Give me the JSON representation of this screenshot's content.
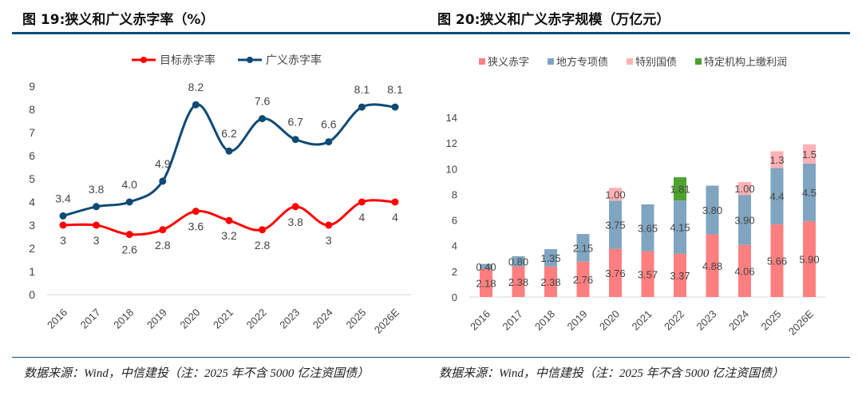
{
  "left": {
    "title": "图 19:狭义和广义赤字率（%）",
    "source": "数据来源：Wind，中信建投（注：2025 年不含 5000 亿注资国债）"
  },
  "right": {
    "title": "图 20:狭义和广义赤字规模（万亿元）",
    "source": "数据来源：Wind，中信建投（注：2025 年不含 5000 亿注资国债）"
  },
  "chart_data": [
    {
      "type": "line",
      "categories": [
        "2016",
        "2017",
        "2018",
        "2019",
        "2020",
        "2021",
        "2022",
        "2023",
        "2024",
        "2025",
        "2026E"
      ],
      "ylim": [
        0,
        9
      ],
      "yticks": [
        0,
        1,
        2,
        3,
        4,
        5,
        6,
        7,
        8,
        9
      ],
      "grid": false,
      "legend": "top",
      "series": [
        {
          "name": "目标赤字率",
          "color": "#ff0000",
          "values": [
            3,
            3,
            2.6,
            2.8,
            3.6,
            3.2,
            2.8,
            3.8,
            3,
            4,
            4
          ],
          "labels": [
            "3",
            "3",
            "2.6",
            "2.8",
            "3.6",
            "3.2",
            "2.8",
            "3.8",
            "3",
            "4",
            "4"
          ]
        },
        {
          "name": "广义赤字率",
          "color": "#0e4a74",
          "values": [
            3.4,
            3.8,
            4.0,
            4.9,
            8.2,
            6.2,
            7.6,
            6.7,
            6.6,
            8.1,
            8.1
          ],
          "labels": [
            "3.4",
            "3.8",
            "4.0",
            "4.9",
            "8.2",
            "6.2",
            "7.6",
            "6.7",
            "6.6",
            "8.1",
            "8.1"
          ]
        }
      ]
    },
    {
      "type": "bar",
      "stacked": true,
      "categories": [
        "2016",
        "2017",
        "2018",
        "2019",
        "2020",
        "2021",
        "2022",
        "2023",
        "2024",
        "2025",
        "2026E"
      ],
      "ylim": [
        0,
        14
      ],
      "yticks": [
        0,
        2,
        4,
        6,
        8,
        10,
        12,
        14
      ],
      "grid": false,
      "legend": "top",
      "series": [
        {
          "name": "狭义赤字",
          "color": "#ff7f80",
          "values": [
            2.18,
            2.38,
            2.38,
            2.76,
            3.76,
            3.57,
            3.37,
            4.88,
            4.06,
            5.66,
            5.9
          ],
          "labels": [
            "2.18",
            "2.38",
            "2.38",
            "2.76",
            "3.76",
            "3.57",
            "3.37",
            "4.88",
            "4.06",
            "5.66",
            "5.90"
          ]
        },
        {
          "name": "地方专项债",
          "color": "#7fa5c0",
          "values": [
            0.4,
            0.8,
            1.35,
            2.15,
            3.75,
            3.65,
            4.15,
            3.8,
            3.9,
            4.4,
            4.5
          ],
          "labels": [
            "0.40",
            "0.80",
            "1.35",
            "2.15",
            "3.75",
            "3.65",
            "4.15",
            "3.80",
            "3.90",
            "4.4",
            "4.5"
          ]
        },
        {
          "name": "特别国债",
          "color": "#ffb1b5",
          "values": [
            0,
            0,
            0,
            0,
            1.0,
            0,
            0,
            0,
            1.0,
            1.3,
            1.5
          ],
          "labels": [
            "",
            "",
            "",
            "",
            "1.00",
            "",
            "",
            "",
            "1.00",
            "1.3",
            "1.5"
          ]
        },
        {
          "name": "特定机构上缴利润",
          "color": "#4ea22e",
          "values": [
            0,
            0,
            0,
            0,
            0,
            0,
            1.81,
            0,
            0,
            0,
            0
          ],
          "labels": [
            "",
            "",
            "",
            "",
            "",
            "",
            "1.81",
            "",
            "",
            "",
            ""
          ]
        }
      ]
    }
  ]
}
